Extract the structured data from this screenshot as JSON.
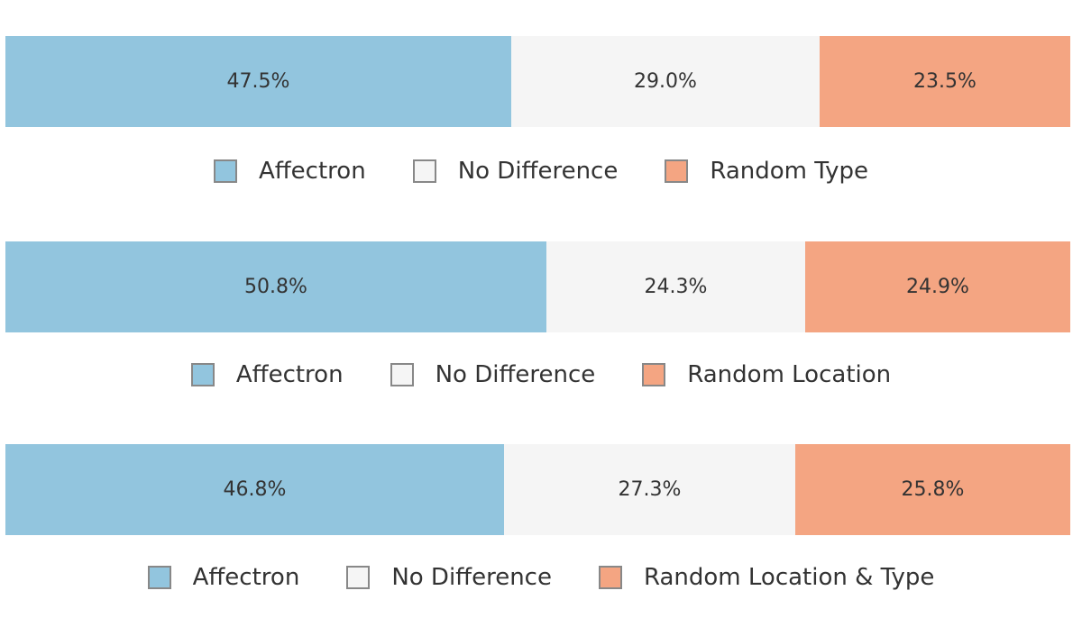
{
  "colors": {
    "affectron": "#92c5de",
    "no_difference": "#f5f5f5",
    "random": "#f4a582"
  },
  "chart_data": [
    {
      "type": "bar",
      "orientation": "horizontal-stacked",
      "series": [
        {
          "name": "Affectron",
          "values": [
            47.5
          ]
        },
        {
          "name": "No Difference",
          "values": [
            29.0
          ]
        },
        {
          "name": "Random Type",
          "values": [
            23.5
          ]
        }
      ],
      "data_labels": [
        "47.5%",
        "29.0%",
        "23.5%"
      ],
      "legend": "bottom-center"
    },
    {
      "type": "bar",
      "orientation": "horizontal-stacked",
      "series": [
        {
          "name": "Affectron",
          "values": [
            50.8
          ]
        },
        {
          "name": "No Difference",
          "values": [
            24.3
          ]
        },
        {
          "name": "Random Location",
          "values": [
            24.9
          ]
        }
      ],
      "data_labels": [
        "50.8%",
        "24.3%",
        "24.9%"
      ],
      "legend": "bottom-center"
    },
    {
      "type": "bar",
      "orientation": "horizontal-stacked",
      "series": [
        {
          "name": "Affectron",
          "values": [
            46.8
          ]
        },
        {
          "name": "No Difference",
          "values": [
            27.3
          ]
        },
        {
          "name": "Random Location & Type",
          "values": [
            25.8
          ]
        }
      ],
      "data_labels": [
        "46.8%",
        "27.3%",
        "25.8%"
      ],
      "legend": "bottom-center"
    }
  ]
}
